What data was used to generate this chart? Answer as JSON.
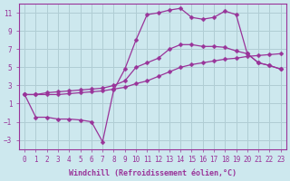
{
  "background_color": "#cde8ee",
  "grid_color": "#b0cdd4",
  "line_color": "#993399",
  "marker": "D",
  "marker_size": 2.5,
  "xlabel": "Windchill (Refroidissement éolien,°C)",
  "xlim": [
    -0.5,
    23.5
  ],
  "ylim": [
    -4,
    12
  ],
  "xticks": [
    0,
    1,
    2,
    3,
    4,
    5,
    6,
    7,
    8,
    9,
    10,
    11,
    12,
    13,
    14,
    15,
    16,
    17,
    18,
    19,
    20,
    21,
    22,
    23
  ],
  "yticks": [
    -3,
    -1,
    1,
    3,
    5,
    7,
    9,
    11
  ],
  "lines": [
    {
      "x": [
        0,
        1,
        2,
        3,
        4,
        5,
        6,
        7,
        8,
        9,
        10,
        11,
        12,
        13,
        14,
        15,
        16,
        17,
        18,
        19,
        20,
        21,
        22,
        23
      ],
      "y": [
        2.0,
        2.0,
        2.0,
        2.0,
        2.1,
        2.2,
        2.3,
        2.4,
        2.6,
        2.8,
        3.2,
        3.5,
        4.0,
        4.5,
        5.0,
        5.3,
        5.5,
        5.7,
        5.9,
        6.0,
        6.2,
        6.3,
        6.4,
        6.5
      ]
    },
    {
      "x": [
        0,
        1,
        2,
        3,
        4,
        5,
        6,
        7,
        8,
        9,
        10,
        11,
        12,
        13,
        14,
        15,
        16,
        17,
        18,
        19,
        20,
        21,
        22,
        23
      ],
      "y": [
        2.0,
        2.0,
        2.2,
        2.3,
        2.4,
        2.5,
        2.6,
        2.7,
        3.0,
        3.5,
        5.0,
        5.5,
        6.0,
        7.0,
        7.5,
        7.5,
        7.3,
        7.3,
        7.2,
        6.8,
        6.5,
        5.5,
        5.2,
        4.8
      ]
    },
    {
      "x": [
        0,
        1,
        2,
        3,
        4,
        5,
        6,
        7,
        8,
        9,
        10,
        11,
        12,
        13,
        14,
        15,
        16,
        17,
        18,
        19,
        20,
        21,
        22,
        23
      ],
      "y": [
        2.0,
        -0.5,
        -0.5,
        -0.7,
        -0.7,
        -0.8,
        -1.0,
        -3.2,
        2.5,
        4.8,
        8.0,
        10.8,
        11.0,
        11.3,
        11.5,
        10.5,
        10.3,
        10.5,
        11.2,
        10.8,
        6.5,
        5.5,
        5.2,
        4.8
      ]
    }
  ],
  "axis_fontsize": 6,
  "tick_fontsize": 5.5,
  "linewidth": 0.9
}
